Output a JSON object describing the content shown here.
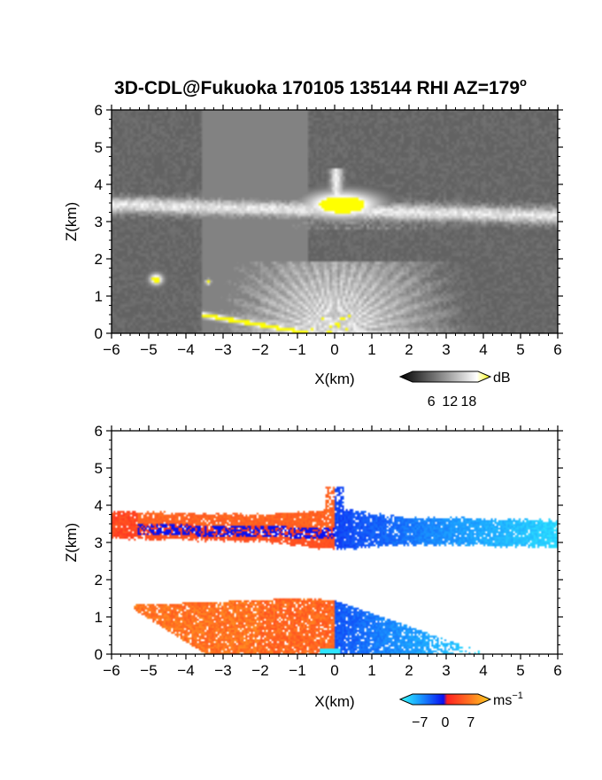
{
  "figure": {
    "title_main": "3D-CDL@Fukuoka 170105 135144 RHI AZ=179",
    "title_sup": "o"
  },
  "chart_data": [
    {
      "type": "heatmap",
      "quantity": "backscatter intensity",
      "title": "3D-CDL@Fukuoka 170105 135144 RHI AZ=179°",
      "xlabel": "X(km)",
      "ylabel": "Z(km)",
      "xlim": [
        -6,
        6
      ],
      "ylim": [
        0,
        6
      ],
      "xticks": [
        -6,
        -5,
        -4,
        -3,
        -2,
        -1,
        0,
        1,
        2,
        3,
        4,
        5,
        6
      ],
      "yticks": [
        0,
        1,
        2,
        3,
        4,
        5,
        6
      ],
      "colorbar": {
        "unit": "dB",
        "ticks": [
          6,
          12,
          18
        ],
        "range": [
          0,
          21
        ],
        "colors": [
          "#000000",
          "#ffffff",
          "#ffff00"
        ]
      },
      "features": [
        {
          "name": "cloud layer",
          "x_range": [
            -6,
            6
          ],
          "z_base": 3.0,
          "z_top": 3.6,
          "intensity_db": "12-18"
        },
        {
          "name": "saturated core",
          "x_range": [
            -0.5,
            1.1
          ],
          "z_range": [
            3.0,
            4.0
          ],
          "intensity_db": ">18"
        },
        {
          "name": "boundary layer fan",
          "x_range": [
            -3.5,
            3.5
          ],
          "z_range": [
            0,
            1.8
          ],
          "intensity_db": "8-14"
        },
        {
          "name": "near-surface bright line",
          "x_range": [
            -3.5,
            -0.8
          ],
          "z_range": [
            0,
            0.5
          ],
          "intensity_db": ">18"
        }
      ]
    },
    {
      "type": "heatmap",
      "quantity": "radial velocity",
      "xlabel": "X(km)",
      "ylabel": "Z(km)",
      "xlim": [
        -6,
        6
      ],
      "ylim": [
        0,
        6
      ],
      "xticks": [
        -6,
        -5,
        -4,
        -3,
        -2,
        -1,
        0,
        1,
        2,
        3,
        4,
        5,
        6
      ],
      "yticks": [
        0,
        1,
        2,
        3,
        4,
        5,
        6
      ],
      "colorbar": {
        "unit": "ms",
        "unit_sup": "−1",
        "ticks": [
          -7,
          0,
          7
        ],
        "range": [
          -9,
          9
        ],
        "colors": [
          "#33ffff",
          "#1a99ff",
          "#0a10f0",
          "#ff2020",
          "#ff7020",
          "#ffd020"
        ]
      },
      "features": [
        {
          "name": "upper layer, x<0",
          "x_range": [
            -6,
            0
          ],
          "z_range": [
            2.8,
            4.2
          ],
          "velocity_ms": [
            1,
            4
          ]
        },
        {
          "name": "upper layer, x>0",
          "x_range": [
            0,
            6
          ],
          "z_range": [
            2.8,
            4.5
          ],
          "velocity_ms": [
            -7,
            -2
          ]
        },
        {
          "name": "lower layer, x<0",
          "x_range": [
            -5.5,
            0
          ],
          "z_range": [
            0,
            1.6
          ],
          "velocity_ms": [
            2,
            6
          ]
        },
        {
          "name": "lower layer, x>0",
          "x_range": [
            0,
            4
          ],
          "z_range": [
            0,
            1.5
          ],
          "velocity_ms": [
            -6,
            -2
          ]
        }
      ]
    }
  ]
}
